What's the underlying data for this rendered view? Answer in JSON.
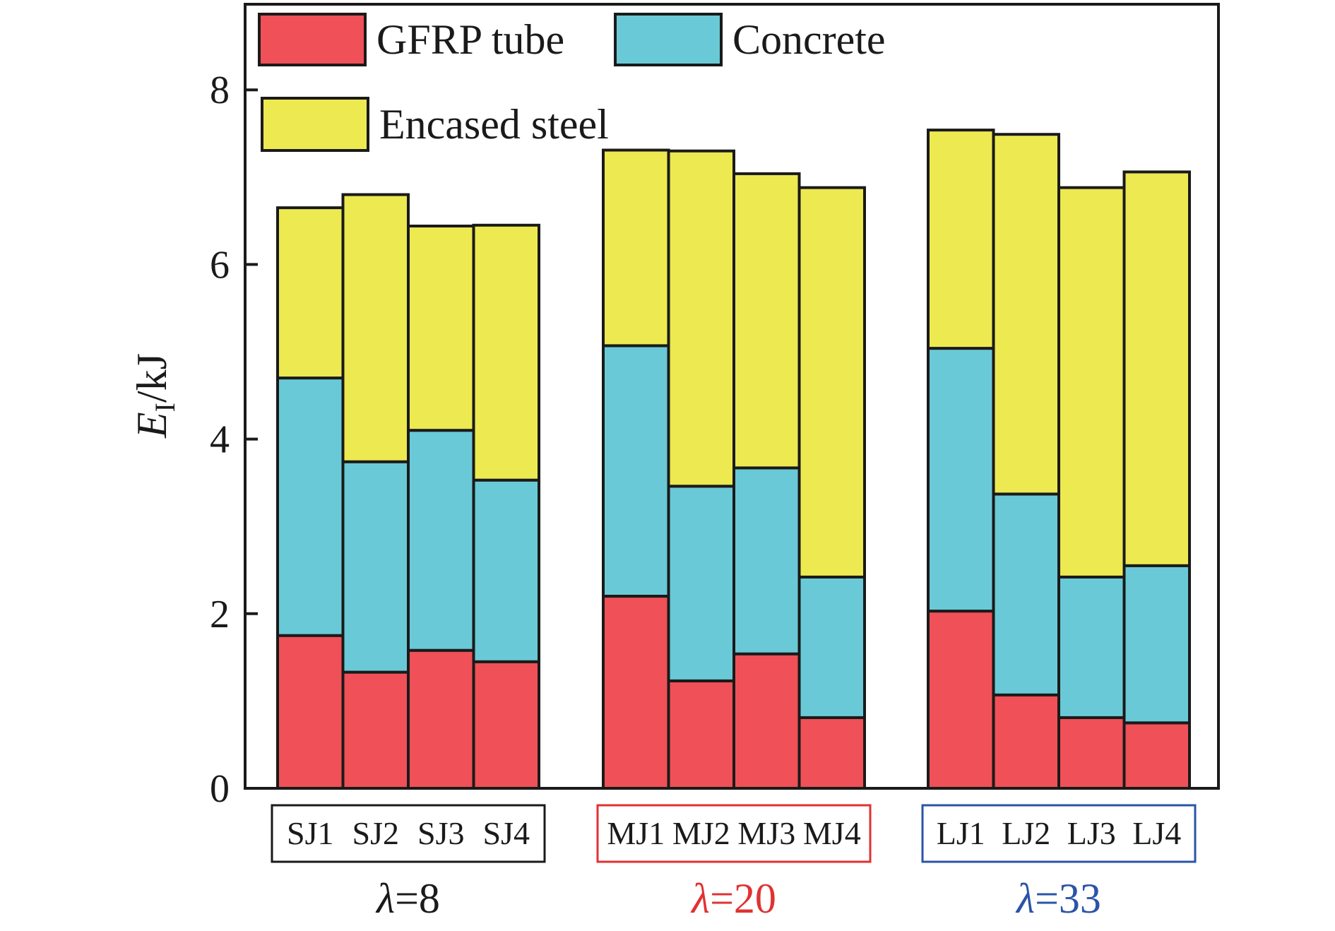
{
  "chart_data": {
    "type": "bar",
    "stacked": true,
    "ylabel": {
      "main": "E",
      "subscript": "I",
      "unit": "/kJ"
    },
    "ylim": [
      0,
      9
    ],
    "yticks": [
      0,
      2,
      4,
      6,
      8
    ],
    "groups": [
      {
        "label": "λ=8",
        "symbol": "λ",
        "value": "=8",
        "color": "#1a1a1a",
        "categories": [
          "SJ1",
          "SJ2",
          "SJ3",
          "SJ4"
        ]
      },
      {
        "label": "λ=20",
        "symbol": "λ",
        "value": "=20",
        "color": "#e03232",
        "categories": [
          "MJ1",
          "MJ2",
          "MJ3",
          "MJ4"
        ]
      },
      {
        "label": "λ=33",
        "symbol": "λ",
        "value": "=33",
        "color": "#2a54a8",
        "categories": [
          "LJ1",
          "LJ2",
          "LJ3",
          "LJ4"
        ]
      }
    ],
    "categories": [
      "SJ1",
      "SJ2",
      "SJ3",
      "SJ4",
      "MJ1",
      "MJ2",
      "MJ3",
      "MJ4",
      "LJ1",
      "LJ2",
      "LJ3",
      "LJ4"
    ],
    "series": [
      {
        "name": "GFRP tube",
        "color": "#f05057",
        "values": [
          1.75,
          1.33,
          1.58,
          1.45,
          2.2,
          1.23,
          1.54,
          0.81,
          2.03,
          1.07,
          0.81,
          0.75
        ]
      },
      {
        "name": "Concrete",
        "color": "#6ac9d6",
        "values": [
          2.95,
          2.41,
          2.52,
          2.08,
          2.87,
          2.23,
          2.13,
          1.61,
          3.01,
          2.3,
          1.61,
          1.8
        ]
      },
      {
        "name": "Encased steel",
        "color": "#ede950",
        "values": [
          1.95,
          3.06,
          2.34,
          2.92,
          2.24,
          3.84,
          3.37,
          4.46,
          2.5,
          4.12,
          4.46,
          4.51
        ]
      }
    ],
    "legend_position": "top-left",
    "grid": false
  }
}
